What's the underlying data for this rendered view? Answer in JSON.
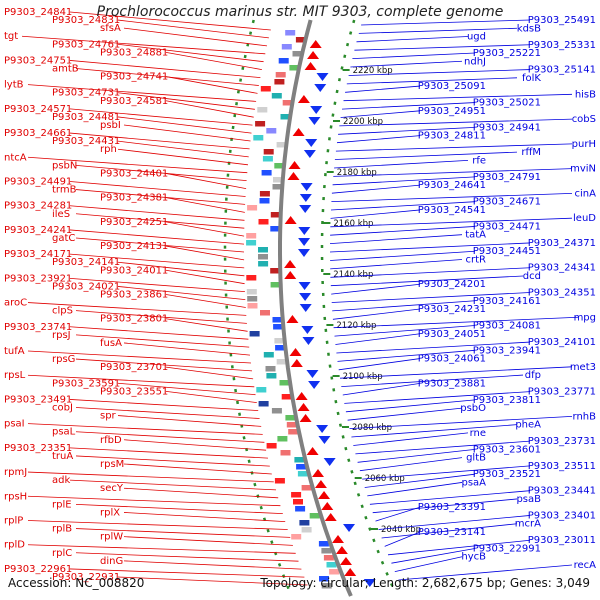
{
  "title": "Prochlorococcus marinus str. MIT 9303, complete genome",
  "accession": "Accession: NC_008820",
  "topology": "Topology: circular; Length: 2,682,675 bp; Genes: 3,049",
  "colors": {
    "left_strand": "#e00000",
    "right_strand": "#0000e0",
    "backbone": "#808080",
    "dashed_ring": "#2a8a2a"
  },
  "kbp_labels": [
    "2220 kbp",
    "2200 kbp",
    "2180 kbp",
    "2160 kbp",
    "2140 kbp",
    "2120 kbp",
    "2100 kbp",
    "2080 kbp",
    "2060 kbp",
    "2040 kbp"
  ],
  "left_labels": [
    "P9303_24841",
    "P9303_24831",
    "sfsA",
    "tgt",
    "P9303_24761",
    "P9303_24881",
    "P9303_24751",
    "amtB",
    "P9303_24741",
    "lytB",
    "P9303_24731",
    "P9303_24581",
    "P9303_24571",
    "P9303_24481",
    "psbI",
    "P9303_24661",
    "P9303_24431",
    "rph",
    "ntcA",
    "psbN",
    "P9303_24401",
    "P9303_24491",
    "trmB",
    "P9303_24381",
    "P9303_24281",
    "ileS",
    "P9303_24251",
    "P9303_24241",
    "gatC",
    "P9303_24131",
    "P9303_24171",
    "P9303_24141",
    "P9303_24011",
    "P9303_23921",
    "P9303_24021",
    "P9303_23861",
    "aroC",
    "clpS",
    "P9303_23801",
    "P9303_23741",
    "rpsJ",
    "fusA",
    "tufA",
    "rpsG",
    "P9303_23701",
    "rpsL",
    "P9303_23591",
    "P9303_23551",
    "P9303_23491",
    "cobJ",
    "spr",
    "psaI",
    "psaL",
    "rfbD",
    "P9303_23351",
    "truA",
    "rpsM",
    "rpmJ",
    "adk",
    "secY",
    "rpsH",
    "rplE",
    "rplX",
    "rplP",
    "rplB",
    "rplW",
    "rplD",
    "rplC",
    "dinG",
    "P9303_22961",
    "P9303_22931"
  ],
  "right_labels": [
    "P9303_25491",
    "kdsB",
    "ugd",
    "P9303_25331",
    "P9303_25221",
    "ndhJ",
    "P9303_25141",
    "folK",
    "P9303_25091",
    "hisB",
    "P9303_25021",
    "P9303_24951",
    "cobS",
    "P9303_24941",
    "P9303_24811",
    "purH",
    "rffM",
    "rfe",
    "mviN",
    "P9303_24791",
    "P9303_24641",
    "cinA",
    "P9303_24671",
    "P9303_24541",
    "leuD",
    "P9303_24471",
    "tatA",
    "P9303_24371",
    "P9303_24451",
    "crtR",
    "P9303_24341",
    "dcd",
    "P9303_24201",
    "P9303_24351",
    "P9303_24161",
    "P9303_24231",
    "mpg",
    "P9303_24081",
    "P9303_24051",
    "P9303_24101",
    "P9303_23941",
    "P9303_24061",
    "met3",
    "dfp",
    "P9303_23881",
    "P9303_23771",
    "P9303_23811",
    "psbO",
    "rnhB",
    "pheA",
    "rne",
    "P9303_23731",
    "P9303_23601",
    "gltB",
    "P9303_23511",
    "P9303_23521",
    "psaA",
    "P9303_23441",
    "psaB",
    "P9303_23391",
    "P9303_23401",
    "mcrA",
    "P9303_23141",
    "P9303_23011",
    "P9303_22991",
    "hycB",
    "recA"
  ]
}
